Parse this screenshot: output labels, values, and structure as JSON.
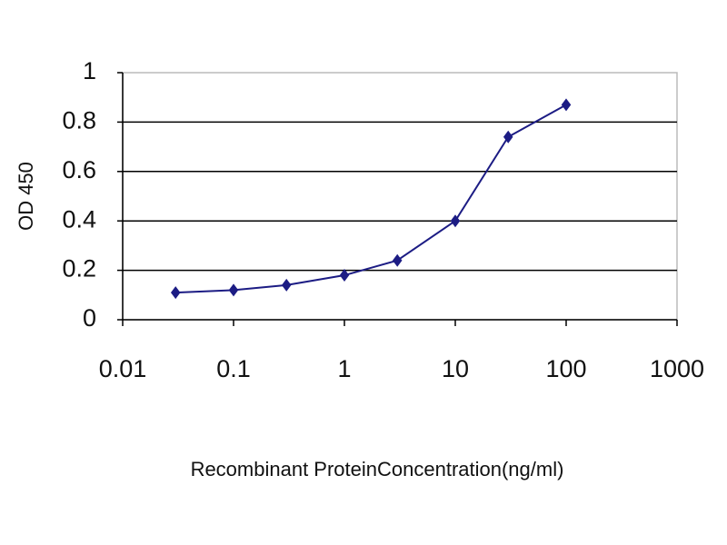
{
  "chart_data": {
    "type": "line",
    "xlabel": "Recombinant ProteinConcentration(ng/ml)",
    "ylabel": "OD 450",
    "x": [
      0.03,
      0.1,
      0.3,
      1,
      3,
      10,
      30,
      100
    ],
    "values": [
      0.11,
      0.12,
      0.14,
      0.18,
      0.24,
      0.4,
      0.74,
      0.87
    ],
    "color": "#1c1c84",
    "xscale": "log",
    "xlim": [
      0.01,
      1000
    ],
    "xticks": [
      0.01,
      0.1,
      1,
      10,
      100,
      1000
    ],
    "ylim": [
      0,
      1
    ],
    "yticks": [
      0,
      0.2,
      0.4,
      0.6,
      0.8,
      1
    ],
    "grid": true
  }
}
